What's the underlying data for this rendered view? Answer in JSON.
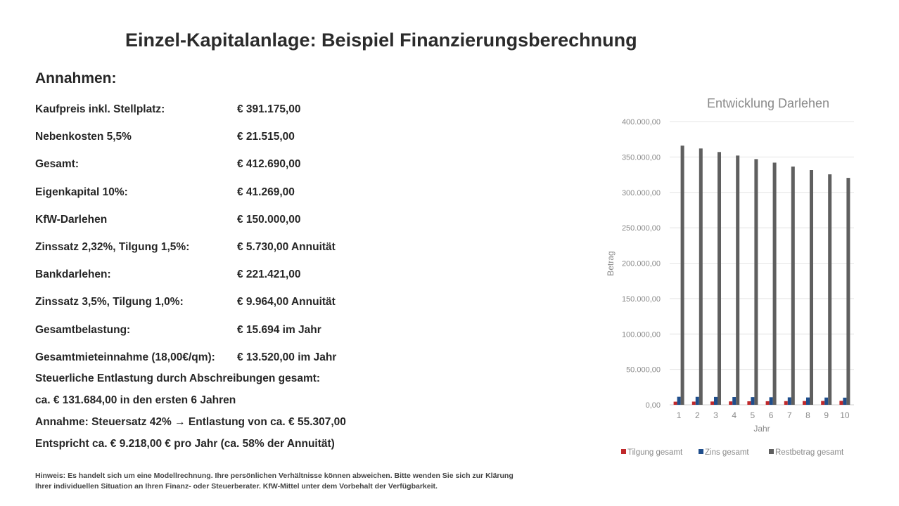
{
  "title": "Einzel-Kapitalanlage: Beispiel Finanzierungsberechnung",
  "subtitle": "Annahmen:",
  "rows": [
    {
      "label": "Kaufpreis inkl. Stellplatz:",
      "value": "€ 391.175,00"
    },
    {
      "label": "Nebenkosten 5,5%",
      "value": "€ 21.515,00"
    },
    {
      "label": "Gesamt:",
      "value": "€ 412.690,00"
    },
    {
      "label": "Eigenkapital 10%:",
      "value": "€ 41.269,00"
    },
    {
      "label": "KfW-Darlehen",
      "value": "€ 150.000,00"
    },
    {
      "label": "Zinssatz 2,32%, Tilgung 1,5%:",
      "value": "€ 5.730,00 Annuität"
    },
    {
      "label": "Bankdarlehen:",
      "value": "€ 221.421,00"
    },
    {
      "label": "Zinssatz 3,5%, Tilgung 1,0%:",
      "value": "€ 9.964,00 Annuität"
    },
    {
      "label": "Gesamtbelastung:",
      "value": "€ 15.694 im  Jahr"
    },
    {
      "label": "Gesamtmieteinnahme (18,00€/qm):",
      "value": "€ 13.520,00 im Jahr"
    }
  ],
  "lines": [
    "Steuerliche Entlastung durch Abschreibungen gesamt:",
    "ca. € 131.684,00 in den ersten 6 Jahren",
    "Annahme: Steuersatz 42% → Entlastung von ca. € 55.307,00",
    "Entspricht ca. € 9.218,00 € pro Jahr (ca. 58% der Annuität)"
  ],
  "note": [
    "Hinweis: Es handelt sich um eine Modellrechnung. Ihre persönlichen Verhältnisse können abweichen. Bitte wenden Sie sich zur Klärung",
    "Ihrer individuellen Situation an Ihren Finanz- oder Steuerberater. KfW-Mittel unter dem Vorbehalt der Verfügbarkeit."
  ],
  "chart_data": {
    "type": "bar",
    "title": "Entwicklung Darlehen",
    "xlabel": "Jahr",
    "ylabel": "Betrag",
    "ylim": [
      0,
      400000
    ],
    "yticks": [
      "0,00",
      "50.000,00",
      "100.000,00",
      "150.000,00",
      "200.000,00",
      "250.000,00",
      "300.000,00",
      "350.000,00",
      "400.000,00"
    ],
    "categories": [
      "1",
      "2",
      "3",
      "4",
      "5",
      "6",
      "7",
      "8",
      "9",
      "10"
    ],
    "grid": true,
    "legend": "bottom",
    "series": [
      {
        "name": "Tilgung gesamt",
        "color": "#c0292b",
        "values": [
          4400,
          4500,
          4650,
          4800,
          4950,
          5050,
          5200,
          5350,
          5450,
          5600
        ]
      },
      {
        "name": "Zins gesamt",
        "color": "#1f4e8c",
        "values": [
          11300,
          11200,
          11050,
          10900,
          10800,
          10650,
          10500,
          10350,
          10250,
          10100
        ]
      },
      {
        "name": "Restbetrag gesamt",
        "color": "#5f5f5f",
        "values": [
          366000,
          362000,
          357000,
          352000,
          347000,
          342000,
          336500,
          331500,
          325500,
          320500
        ]
      }
    ]
  }
}
